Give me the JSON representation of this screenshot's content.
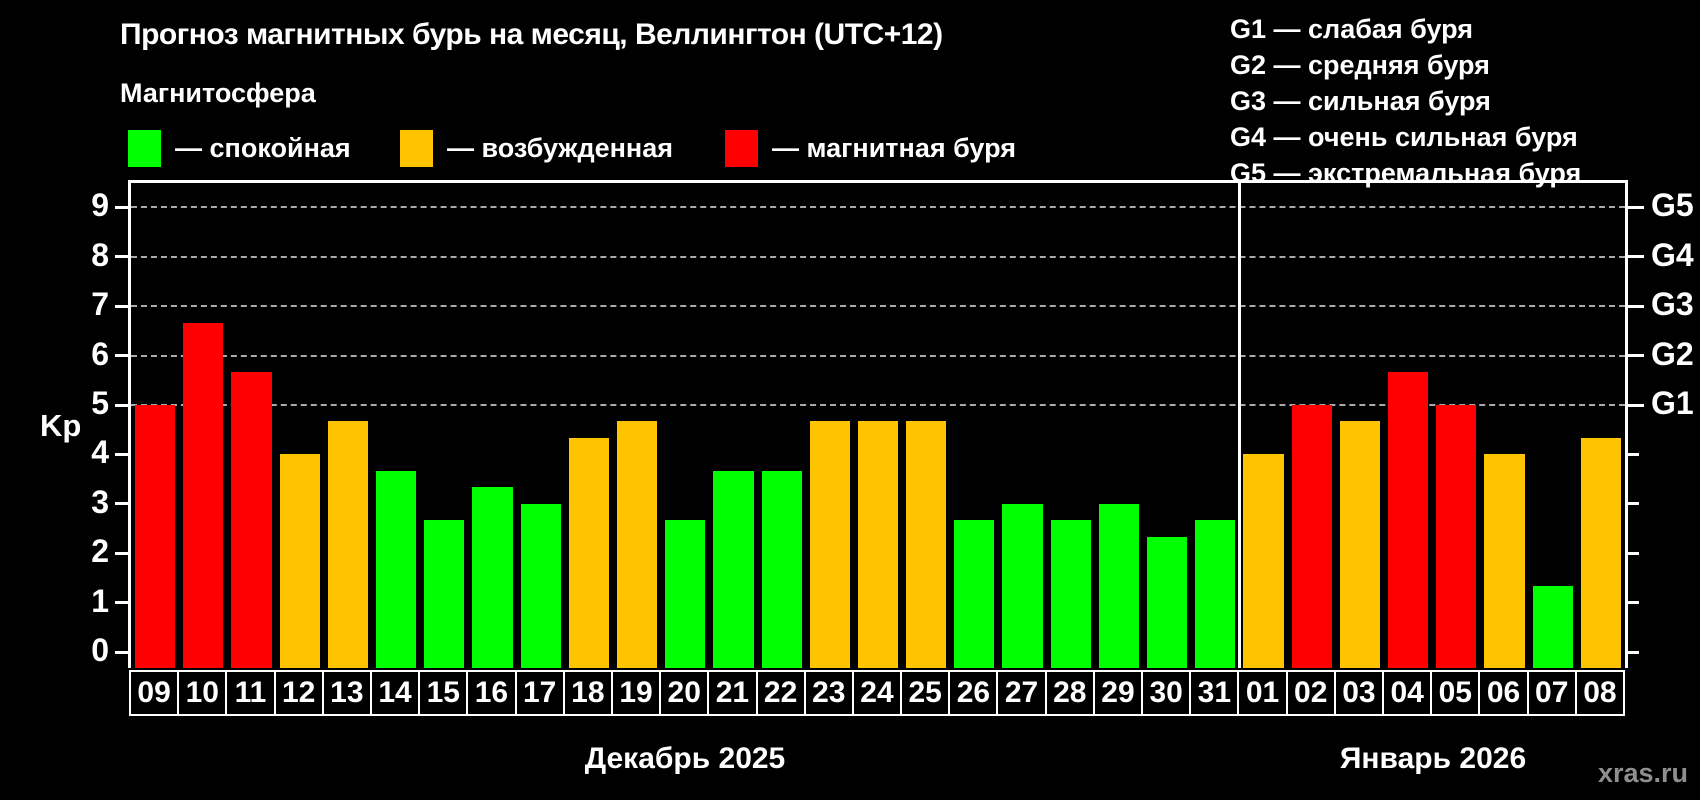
{
  "title": "Прогноз магнитных бурь на месяц, Веллингтон (UTC+12)",
  "magnetosphere_legend": {
    "title": "Магнитосфера",
    "items": [
      {
        "key": "quiet",
        "label": "— спокойная",
        "color": "#00ff00"
      },
      {
        "key": "excited",
        "label": "— возбужденная",
        "color": "#ffc400"
      },
      {
        "key": "storm",
        "label": "— магнитная буря",
        "color": "#ff0000"
      }
    ]
  },
  "g_scale_legend": {
    "items": [
      "G1 — слабая буря",
      "G2 — средняя буря",
      "G3 — сильная буря",
      "G4 — очень сильная буря",
      "G5 — экстремальная буря"
    ]
  },
  "watermark": "xras.ru",
  "chart_data": {
    "type": "bar",
    "ylabel": "Kp",
    "ylim": [
      0,
      9.4
    ],
    "yticks": [
      0,
      1,
      2,
      3,
      4,
      5,
      6,
      7,
      8,
      9
    ],
    "gridlines_at": [
      5,
      6,
      7,
      8,
      9
    ],
    "grid": "horizontal-dashed-at-storm-levels",
    "legend_position": "top",
    "right_axis_labels": [
      {
        "kp": 5,
        "label": "G1"
      },
      {
        "kp": 6,
        "label": "G2"
      },
      {
        "kp": 7,
        "label": "G3"
      },
      {
        "kp": 8,
        "label": "G4"
      },
      {
        "kp": 9,
        "label": "G5"
      }
    ],
    "colors": {
      "quiet": "#00ff00",
      "excited": "#ffc400",
      "storm": "#ff0000"
    },
    "panels": [
      {
        "month_label": "Декабрь 2025",
        "days": [
          "09",
          "10",
          "11",
          "12",
          "13",
          "14",
          "15",
          "16",
          "17",
          "18",
          "19",
          "20",
          "21",
          "22",
          "23",
          "24",
          "25",
          "26",
          "27",
          "28",
          "29",
          "30",
          "31"
        ],
        "values": [
          5.0,
          6.67,
          5.67,
          4.0,
          4.67,
          3.67,
          2.67,
          3.33,
          3.0,
          4.33,
          4.67,
          2.67,
          3.67,
          3.67,
          4.67,
          4.67,
          4.67,
          2.67,
          3.0,
          2.67,
          3.0,
          2.33,
          2.67
        ],
        "states": [
          "storm",
          "storm",
          "storm",
          "excited",
          "excited",
          "quiet",
          "quiet",
          "quiet",
          "quiet",
          "excited",
          "excited",
          "quiet",
          "quiet",
          "quiet",
          "excited",
          "excited",
          "excited",
          "quiet",
          "quiet",
          "quiet",
          "quiet",
          "quiet",
          "quiet"
        ]
      },
      {
        "month_label": "Январь 2026",
        "days": [
          "01",
          "02",
          "03",
          "04",
          "05",
          "06",
          "07",
          "08"
        ],
        "values": [
          4.0,
          5.0,
          4.67,
          5.67,
          5.0,
          4.0,
          1.33,
          4.33
        ],
        "states": [
          "excited",
          "storm",
          "excited",
          "storm",
          "storm",
          "excited",
          "quiet",
          "excited"
        ]
      }
    ]
  }
}
